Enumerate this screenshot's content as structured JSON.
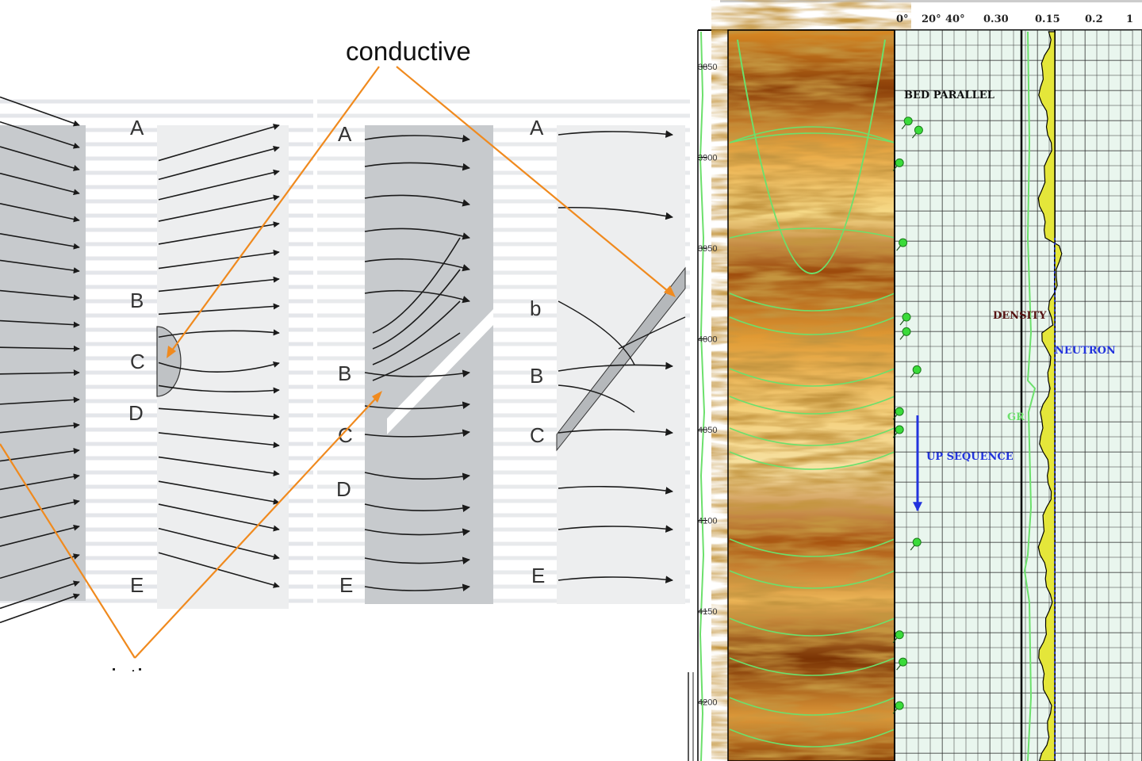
{
  "annotations": {
    "conductive": "conductive",
    "resistive": "resistive"
  },
  "panels": [
    {
      "labels": [
        "A",
        "B",
        "C",
        "D",
        "E"
      ]
    },
    {
      "labels": [
        "A",
        "B",
        "C",
        "D",
        "E"
      ]
    },
    {
      "labels": [
        "A",
        "b",
        "B",
        "C",
        "E"
      ]
    }
  ],
  "log": {
    "scale_labels": [
      "0°",
      "20°",
      "40°",
      "0.30",
      "0.15",
      "0.2",
      "1"
    ],
    "depths": [
      "3850",
      "3900",
      "3950",
      "4000",
      "4050",
      "4100",
      "4150",
      "4200"
    ],
    "bed_parallel": "BED PARALLEL",
    "up_sequence": "UP SEQUENCE",
    "density": "DENSITY",
    "neutron": "NEUTRON",
    "gr": "GR"
  },
  "colors": {
    "orange": "#F08A1E",
    "green": "#6CE06C",
    "blue": "#2233DD",
    "yellow": "#E4E63A"
  }
}
